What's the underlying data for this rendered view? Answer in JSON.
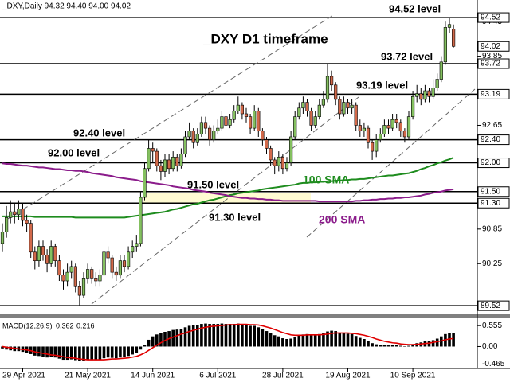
{
  "chart_data": {
    "type": "candlestick",
    "header": "_DXY,Daily  94.32 94.40 94.00 94.02",
    "title": "_DXY D1 timeframe",
    "categories": [
      null,
      null,
      null,
      null,
      null,
      "29 Apr 2021",
      null,
      null,
      null,
      null,
      null,
      null,
      null,
      null,
      null,
      null,
      null,
      null,
      null,
      null,
      null,
      "21 May 2021",
      null,
      null,
      null,
      null,
      null,
      null,
      null,
      null,
      null,
      null,
      null,
      null,
      null,
      null,
      null,
      "14 Jun 2021",
      null,
      null,
      null,
      null,
      null,
      null,
      null,
      null,
      null,
      null,
      null,
      null,
      null,
      null,
      null,
      "6 Jul 2021",
      null,
      null,
      null,
      null,
      null,
      null,
      null,
      null,
      null,
      null,
      null,
      null,
      null,
      null,
      null,
      "28 Jul 2021",
      null,
      null,
      null,
      null,
      null,
      null,
      null,
      null,
      null,
      null,
      null,
      null,
      null,
      null,
      null,
      "19 Aug 2021",
      null,
      null,
      null,
      null,
      null,
      null,
      null,
      null,
      null,
      null,
      null,
      null,
      null,
      null,
      null,
      "10 Sep 2021",
      null,
      null,
      null,
      null,
      null,
      null,
      null,
      null,
      null,
      null
    ],
    "open": [
      90.6,
      90.8,
      91.05,
      91.15,
      91.1,
      91.2,
      91.0,
      90.95,
      90.45,
      90.3,
      90.55,
      90.4,
      90.25,
      90.55,
      90.3,
      90.05,
      89.95,
      90.1,
      90.2,
      89.85,
      89.7,
      90.0,
      90.15,
      90.0,
      89.95,
      90.05,
      90.45,
      90.35,
      90.1,
      90.05,
      90.3,
      90.2,
      90.45,
      90.55,
      90.6,
      91.4,
      91.9,
      92.25,
      92.2,
      91.95,
      91.85,
      92.05,
      91.9,
      92.1,
      91.95,
      92.15,
      92.45,
      92.55,
      92.35,
      92.5,
      92.7,
      92.6,
      92.4,
      92.55,
      92.6,
      92.8,
      92.65,
      92.75,
      92.9,
      93.0,
      92.85,
      92.8,
      92.6,
      92.9,
      92.55,
      92.4,
      92.25,
      92.05,
      91.95,
      92.1,
      91.9,
      92.0,
      92.45,
      92.8,
      92.95,
      93.05,
      92.9,
      92.65,
      92.8,
      93.0,
      93.1,
      93.5,
      93.35,
      93.1,
      92.85,
      93.05,
      92.95,
      93.0,
      92.65,
      92.55,
      92.6,
      92.35,
      92.2,
      92.4,
      92.5,
      92.65,
      92.6,
      92.75,
      92.7,
      92.55,
      92.45,
      92.8,
      93.15,
      93.2,
      93.1,
      93.25,
      93.15,
      93.3,
      93.45,
      93.75,
      94.35,
      94.32
    ],
    "high": [
      90.95,
      91.25,
      91.35,
      91.3,
      91.35,
      91.3,
      91.1,
      91.0,
      90.55,
      90.65,
      90.65,
      90.5,
      90.65,
      90.6,
      90.4,
      90.15,
      90.25,
      90.3,
      90.25,
      89.95,
      90.1,
      90.25,
      90.2,
      90.1,
      90.15,
      90.55,
      90.55,
      90.4,
      90.2,
      90.4,
      90.4,
      90.55,
      90.65,
      90.75,
      91.5,
      92.0,
      92.4,
      92.35,
      92.25,
      92.05,
      92.15,
      92.15,
      92.2,
      92.15,
      92.25,
      92.55,
      92.7,
      92.6,
      92.6,
      92.8,
      92.8,
      92.65,
      92.65,
      92.75,
      92.9,
      92.85,
      92.85,
      93.0,
      93.15,
      93.05,
      92.95,
      92.85,
      93.0,
      92.95,
      92.6,
      92.45,
      92.3,
      92.1,
      92.2,
      92.15,
      92.1,
      92.55,
      92.9,
      93.05,
      93.15,
      93.1,
      92.95,
      92.9,
      93.1,
      93.25,
      93.72,
      93.6,
      93.4,
      93.15,
      93.15,
      93.1,
      93.1,
      93.05,
      92.75,
      92.7,
      92.65,
      92.4,
      92.5,
      92.6,
      92.75,
      92.75,
      92.85,
      92.85,
      92.75,
      92.6,
      92.9,
      93.25,
      93.35,
      93.3,
      93.35,
      93.3,
      93.45,
      93.55,
      93.85,
      94.45,
      94.52,
      94.4
    ],
    "low": [
      90.45,
      90.7,
      90.95,
      90.95,
      91.0,
      90.9,
      90.8,
      90.35,
      90.15,
      90.2,
      90.3,
      90.1,
      90.2,
      90.2,
      89.95,
      89.8,
      89.85,
      90.0,
      89.75,
      89.53,
      89.65,
      89.9,
      89.9,
      89.85,
      89.85,
      90.0,
      90.25,
      90.0,
      89.95,
      90.0,
      90.1,
      90.15,
      90.35,
      90.45,
      90.55,
      91.35,
      91.85,
      92.0,
      91.85,
      91.7,
      91.75,
      91.8,
      91.85,
      91.85,
      91.9,
      92.1,
      92.4,
      92.25,
      92.3,
      92.45,
      92.5,
      92.3,
      92.35,
      92.5,
      92.55,
      92.55,
      92.6,
      92.7,
      92.85,
      92.75,
      92.7,
      92.5,
      92.55,
      92.45,
      92.3,
      92.15,
      91.95,
      91.8,
      91.85,
      91.8,
      91.85,
      91.95,
      92.4,
      92.75,
      92.85,
      92.8,
      92.55,
      92.6,
      92.75,
      92.95,
      93.05,
      93.25,
      93.0,
      92.75,
      92.8,
      92.85,
      92.85,
      92.55,
      92.45,
      92.45,
      92.25,
      92.05,
      92.1,
      92.35,
      92.45,
      92.5,
      92.55,
      92.6,
      92.45,
      92.35,
      92.4,
      92.75,
      93.05,
      93.0,
      93.05,
      93.05,
      93.1,
      93.25,
      93.4,
      93.7,
      94.25,
      94.0
    ],
    "close": [
      90.8,
      91.05,
      91.15,
      91.1,
      91.2,
      91.0,
      90.95,
      90.45,
      90.3,
      90.55,
      90.4,
      90.25,
      90.55,
      90.3,
      90.05,
      89.95,
      90.1,
      90.2,
      89.85,
      89.7,
      90.0,
      90.15,
      90.0,
      89.95,
      90.05,
      90.45,
      90.35,
      90.1,
      90.05,
      90.3,
      90.2,
      90.45,
      90.55,
      90.6,
      91.4,
      91.9,
      92.25,
      92.2,
      91.95,
      91.85,
      92.05,
      91.9,
      92.1,
      91.95,
      92.15,
      92.45,
      92.55,
      92.35,
      92.5,
      92.7,
      92.6,
      92.4,
      92.55,
      92.6,
      92.8,
      92.65,
      92.75,
      92.9,
      93.0,
      92.85,
      92.8,
      92.6,
      92.9,
      92.55,
      92.4,
      92.25,
      92.05,
      91.95,
      92.1,
      91.9,
      92.0,
      92.45,
      92.8,
      92.95,
      93.05,
      92.9,
      92.65,
      92.8,
      93.0,
      93.1,
      93.5,
      93.35,
      93.1,
      92.85,
      93.05,
      92.95,
      93.0,
      92.65,
      92.55,
      92.6,
      92.35,
      92.2,
      92.4,
      92.5,
      92.65,
      92.6,
      92.75,
      92.7,
      92.55,
      92.45,
      92.8,
      93.15,
      93.2,
      93.1,
      93.25,
      93.15,
      93.3,
      93.45,
      93.75,
      94.35,
      94.4,
      94.02
    ],
    "up_color": "#84c060",
    "down_color": "#d2694a",
    "ylim": [
      89.37,
      94.59
    ],
    "yticks": [
      94.45,
      93.85,
      92.65,
      90.85,
      90.25
    ],
    "levels": [
      {
        "value": 94.52,
        "label": "94.52",
        "text": "94.52 level"
      },
      {
        "value": 93.72,
        "label": "93.72",
        "text": "93.72 level"
      },
      {
        "value": 93.19,
        "label": "93.19",
        "text": "93.19 level"
      },
      {
        "value": 92.4,
        "label": "92.40",
        "text": "92.40 level"
      },
      {
        "value": 92.0,
        "label": "92.00",
        "text": "92.00 level"
      },
      {
        "value": 91.5,
        "label": "91.50",
        "text": "91.50 level"
      },
      {
        "value": 91.3,
        "label": "91.30",
        "text": "91.30 level"
      },
      {
        "value": 89.52,
        "label": "89.52"
      }
    ],
    "series": [
      {
        "name": "100 SMA",
        "color": "#1e8c1e",
        "values": [
          91.07,
          91.07,
          91.07,
          91.07,
          91.07,
          91.07,
          91.07,
          91.07,
          91.06,
          91.06,
          91.06,
          91.06,
          91.06,
          91.06,
          91.06,
          91.06,
          91.06,
          91.06,
          91.05,
          91.05,
          91.05,
          91.05,
          91.05,
          91.05,
          91.05,
          91.05,
          91.05,
          91.05,
          91.05,
          91.05,
          91.05,
          91.06,
          91.07,
          91.08,
          91.09,
          91.1,
          91.11,
          91.12,
          91.13,
          91.14,
          91.15,
          91.17,
          91.19,
          91.2,
          91.22,
          91.24,
          91.26,
          91.28,
          91.29,
          91.31,
          91.33,
          91.35,
          91.36,
          91.38,
          91.4,
          91.42,
          91.44,
          91.45,
          91.47,
          91.48,
          91.49,
          91.5,
          91.51,
          91.52,
          91.54,
          91.55,
          91.56,
          91.57,
          91.58,
          91.59,
          91.6,
          91.61,
          91.62,
          91.64,
          91.65,
          91.65,
          91.66,
          91.66,
          91.67,
          91.67,
          91.68,
          91.68,
          91.69,
          91.69,
          91.7,
          91.7,
          91.71,
          91.71,
          91.72,
          91.72,
          91.73,
          91.74,
          91.75,
          91.76,
          91.77,
          91.78,
          91.78,
          91.79,
          91.8,
          91.81,
          91.82,
          91.84,
          91.86,
          91.89,
          91.91,
          91.94,
          91.96,
          91.99,
          92.01,
          92.04,
          92.06,
          92.09
        ]
      },
      {
        "name": "200 SMA",
        "color": "#8b1c8b",
        "values": [
          91.99,
          91.98,
          91.98,
          91.97,
          91.96,
          91.95,
          91.95,
          91.94,
          91.93,
          91.92,
          91.92,
          91.91,
          91.9,
          91.89,
          91.89,
          91.88,
          91.87,
          91.87,
          91.86,
          91.86,
          91.85,
          91.84,
          91.82,
          91.81,
          91.8,
          91.79,
          91.78,
          91.77,
          91.75,
          91.74,
          91.73,
          91.72,
          91.71,
          91.7,
          91.68,
          91.67,
          91.66,
          91.65,
          91.64,
          91.63,
          91.62,
          91.61,
          91.59,
          91.58,
          91.57,
          91.56,
          91.55,
          91.53,
          91.52,
          91.51,
          91.5,
          91.48,
          91.47,
          91.46,
          91.45,
          91.44,
          91.42,
          91.41,
          91.4,
          91.39,
          91.39,
          91.38,
          91.38,
          91.37,
          91.37,
          91.36,
          91.36,
          91.35,
          91.35,
          91.34,
          91.34,
          91.34,
          91.34,
          91.34,
          91.34,
          91.34,
          91.34,
          91.34,
          91.33,
          91.33,
          91.33,
          91.33,
          91.33,
          91.33,
          91.33,
          91.33,
          91.33,
          91.34,
          91.34,
          91.35,
          91.35,
          91.36,
          91.36,
          91.37,
          91.37,
          91.38,
          91.38,
          91.39,
          91.39,
          91.4,
          91.4,
          91.41,
          91.42,
          91.43,
          91.45,
          91.46,
          91.48,
          91.49,
          91.5,
          91.52,
          91.53,
          91.54
        ]
      }
    ],
    "macd": {
      "title": "MACD(12,26,9)",
      "bar_color": "#000000",
      "signal_color": "#e00000",
      "ylim": [
        -0.56,
        0.77
      ],
      "yticks": [
        0.555,
        {
          "value": 0,
          "label": "0.00"
        },
        -0.465
      ],
      "values": [
        -0.05,
        -0.08,
        -0.1,
        -0.12,
        -0.12,
        -0.14,
        -0.16,
        -0.2,
        -0.24,
        -0.25,
        -0.27,
        -0.29,
        -0.28,
        -0.29,
        -0.32,
        -0.35,
        -0.35,
        -0.34,
        -0.36,
        -0.39,
        -0.38,
        -0.36,
        -0.36,
        -0.36,
        -0.35,
        -0.31,
        -0.29,
        -0.3,
        -0.31,
        -0.29,
        -0.28,
        -0.25,
        -0.21,
        -0.18,
        -0.08,
        0.05,
        0.18,
        0.27,
        0.32,
        0.35,
        0.39,
        0.41,
        0.44,
        0.45,
        0.47,
        0.51,
        0.55,
        0.56,
        0.58,
        0.6,
        0.61,
        0.6,
        0.6,
        0.6,
        0.61,
        0.6,
        0.6,
        0.6,
        0.61,
        0.6,
        0.58,
        0.55,
        0.55,
        0.51,
        0.46,
        0.41,
        0.35,
        0.3,
        0.27,
        0.22,
        0.2,
        0.21,
        0.25,
        0.29,
        0.32,
        0.33,
        0.31,
        0.31,
        0.33,
        0.35,
        0.4,
        0.42,
        0.41,
        0.37,
        0.36,
        0.34,
        0.33,
        0.28,
        0.23,
        0.2,
        0.15,
        0.09,
        0.06,
        0.04,
        0.04,
        0.03,
        0.04,
        0.04,
        0.02,
        0.0,
        0.02,
        0.06,
        0.09,
        0.11,
        0.14,
        0.15,
        0.17,
        0.21,
        0.27,
        0.33,
        0.36,
        0.362
      ],
      "signal": [
        0.0,
        -0.02,
        -0.03,
        -0.05,
        -0.06,
        -0.08,
        -0.09,
        -0.11,
        -0.14,
        -0.16,
        -0.18,
        -0.2,
        -0.22,
        -0.23,
        -0.25,
        -0.27,
        -0.29,
        -0.3,
        -0.31,
        -0.33,
        -0.34,
        -0.35,
        -0.35,
        -0.35,
        -0.35,
        -0.35,
        -0.34,
        -0.33,
        -0.33,
        -0.32,
        -0.31,
        -0.3,
        -0.28,
        -0.26,
        -0.22,
        -0.17,
        -0.1,
        -0.03,
        0.04,
        0.1,
        0.16,
        0.21,
        0.25,
        0.29,
        0.33,
        0.36,
        0.4,
        0.43,
        0.46,
        0.49,
        0.51,
        0.53,
        0.54,
        0.55,
        0.56,
        0.57,
        0.58,
        0.58,
        0.59,
        0.59,
        0.59,
        0.58,
        0.58,
        0.57,
        0.55,
        0.52,
        0.49,
        0.45,
        0.41,
        0.37,
        0.34,
        0.31,
        0.3,
        0.3,
        0.3,
        0.31,
        0.31,
        0.31,
        0.31,
        0.32,
        0.33,
        0.35,
        0.36,
        0.36,
        0.36,
        0.36,
        0.35,
        0.34,
        0.32,
        0.3,
        0.27,
        0.24,
        0.2,
        0.17,
        0.14,
        0.12,
        0.1,
        0.09,
        0.07,
        0.06,
        0.05,
        0.05,
        0.06,
        0.07,
        0.08,
        0.09,
        0.11,
        0.13,
        0.15,
        0.18,
        0.2,
        0.216
      ]
    }
  }
}
